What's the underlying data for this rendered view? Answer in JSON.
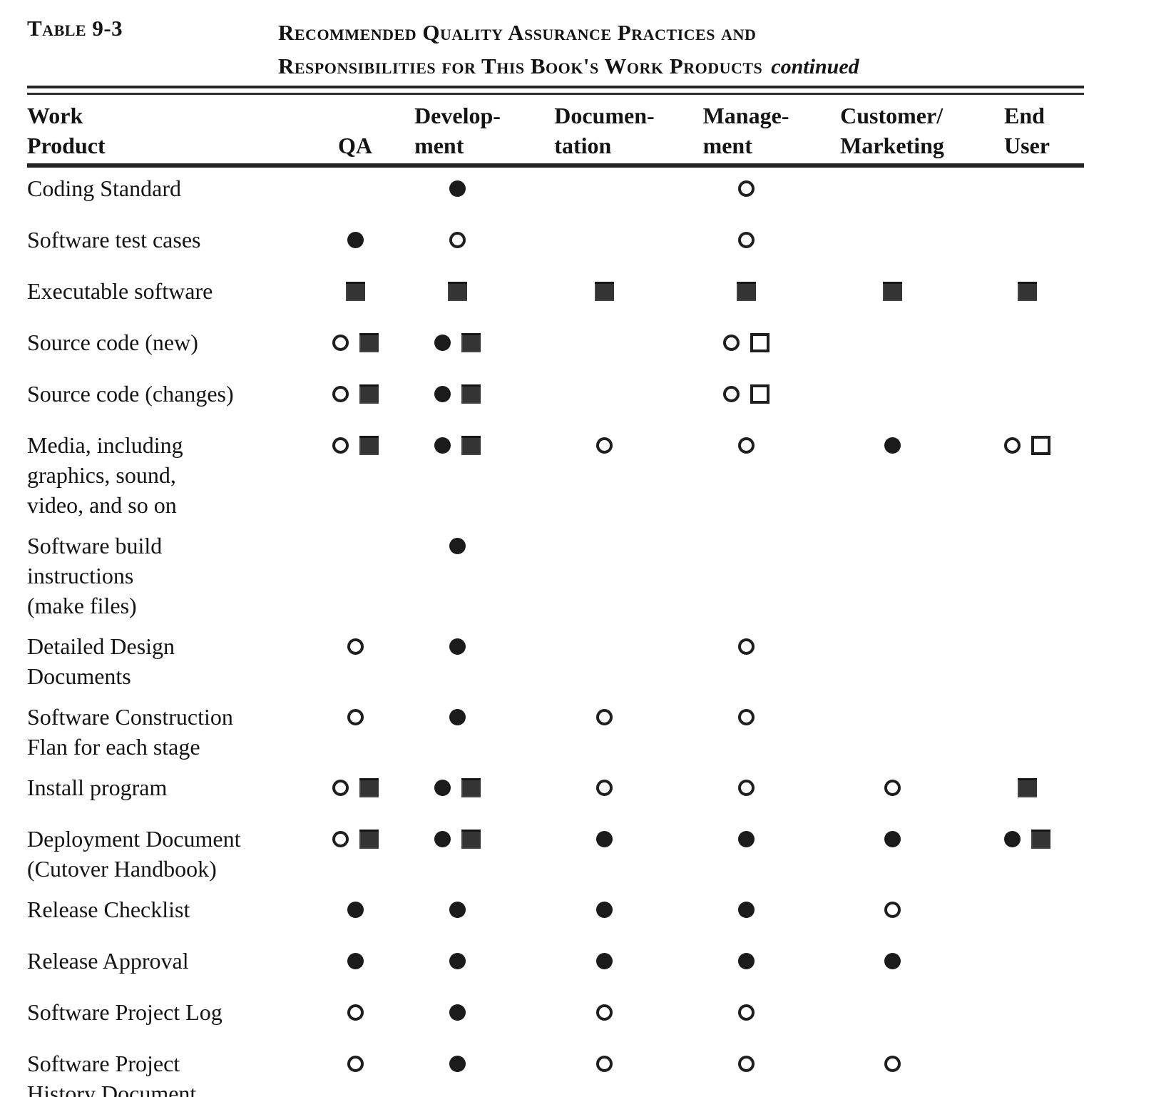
{
  "title": {
    "table_label": "Table 9-3",
    "line1": "Recommended Quality Assurance Practices and",
    "line2": "Responsibilities for This Book's Work Products",
    "continued": "continued"
  },
  "columns": [
    {
      "id": "work_product",
      "label_lines": [
        "Work",
        "Product"
      ]
    },
    {
      "id": "qa",
      "label_lines": [
        "QA"
      ]
    },
    {
      "id": "development",
      "label_lines": [
        "Develop-",
        "ment"
      ]
    },
    {
      "id": "documentation",
      "label_lines": [
        "Documen-",
        "tation"
      ]
    },
    {
      "id": "management",
      "label_lines": [
        "Manage-",
        "ment"
      ]
    },
    {
      "id": "customer_marketing",
      "label_lines": [
        "Customer/",
        "Marketing"
      ]
    },
    {
      "id": "end_user",
      "label_lines": [
        "End",
        "User"
      ]
    }
  ],
  "symbol_colors": {
    "filled": "#1b1b1b",
    "filled_square": "#343434",
    "outline": "#1f1f1f",
    "background": "#ffffff"
  },
  "rows": [
    {
      "label_lines": [
        "Coding Standard"
      ],
      "cells": {
        "qa": [],
        "development": [
          "filled-circle"
        ],
        "documentation": [],
        "management": [
          "open-circle"
        ],
        "customer_marketing": [],
        "end_user": []
      }
    },
    {
      "label_lines": [
        "Software test cases"
      ],
      "cells": {
        "qa": [
          "filled-circle"
        ],
        "development": [
          "open-circle"
        ],
        "documentation": [],
        "management": [
          "open-circle"
        ],
        "customer_marketing": [],
        "end_user": []
      }
    },
    {
      "label_lines": [
        "Executable software"
      ],
      "cells": {
        "qa": [
          "filled-square"
        ],
        "development": [
          "filled-square"
        ],
        "documentation": [
          "filled-square"
        ],
        "management": [
          "filled-square"
        ],
        "customer_marketing": [
          "filled-square"
        ],
        "end_user": [
          "filled-square"
        ]
      }
    },
    {
      "label_lines": [
        "Source code (new)"
      ],
      "cells": {
        "qa": [
          "open-circle",
          "filled-square"
        ],
        "development": [
          "filled-circle",
          "filled-square"
        ],
        "documentation": [],
        "management": [
          "open-circle",
          "open-square"
        ],
        "customer_marketing": [],
        "end_user": []
      }
    },
    {
      "label_lines": [
        "Source code (changes)"
      ],
      "cells": {
        "qa": [
          "open-circle",
          "filled-square"
        ],
        "development": [
          "filled-circle",
          "filled-square"
        ],
        "documentation": [],
        "management": [
          "open-circle",
          "open-square"
        ],
        "customer_marketing": [],
        "end_user": []
      }
    },
    {
      "label_lines": [
        "Media, including",
        "graphics, sound,",
        "video, and so on"
      ],
      "cells": {
        "qa": [
          "open-circle",
          "filled-square"
        ],
        "development": [
          "filled-circle",
          "filled-square"
        ],
        "documentation": [
          "open-circle"
        ],
        "management": [
          "open-circle"
        ],
        "customer_marketing": [
          "filled-circle"
        ],
        "end_user": [
          "open-circle",
          "open-square"
        ]
      }
    },
    {
      "label_lines": [
        "Software  build",
        "instructions",
        "(make files)"
      ],
      "cells": {
        "qa": [],
        "development": [
          "filled-circle"
        ],
        "documentation": [],
        "management": [],
        "customer_marketing": [],
        "end_user": []
      }
    },
    {
      "label_lines": [
        "Detailed Design",
        "Documents"
      ],
      "cells": {
        "qa": [
          "open-circle"
        ],
        "development": [
          "filled-circle"
        ],
        "documentation": [],
        "management": [
          "open-circle"
        ],
        "customer_marketing": [],
        "end_user": []
      }
    },
    {
      "label_lines": [
        "Software  Construction",
        "Flan for each stage"
      ],
      "cells": {
        "qa": [
          "open-circle"
        ],
        "development": [
          "filled-circle"
        ],
        "documentation": [
          "open-circle"
        ],
        "management": [
          "open-circle"
        ],
        "customer_marketing": [],
        "end_user": []
      }
    },
    {
      "label_lines": [
        "Install program"
      ],
      "cells": {
        "qa": [
          "open-circle",
          "filled-square"
        ],
        "development": [
          "filled-circle",
          "filled-square"
        ],
        "documentation": [
          "open-circle"
        ],
        "management": [
          "open-circle"
        ],
        "customer_marketing": [
          "open-circle"
        ],
        "end_user": [
          "filled-square"
        ]
      }
    },
    {
      "label_lines": [
        "Deployment Document",
        "(Cutover  Handbook)"
      ],
      "cells": {
        "qa": [
          "open-circle",
          "filled-square"
        ],
        "development": [
          "filled-circle",
          "filled-square"
        ],
        "documentation": [
          "filled-circle"
        ],
        "management": [
          "filled-circle"
        ],
        "customer_marketing": [
          "filled-circle"
        ],
        "end_user": [
          "filled-circle",
          "filled-square"
        ]
      }
    },
    {
      "label_lines": [
        "Release  Checklist"
      ],
      "cells": {
        "qa": [
          "filled-circle"
        ],
        "development": [
          "filled-circle"
        ],
        "documentation": [
          "filled-circle"
        ],
        "management": [
          "filled-circle"
        ],
        "customer_marketing": [
          "open-circle"
        ],
        "end_user": []
      }
    },
    {
      "label_lines": [
        "Release  Approval"
      ],
      "cells": {
        "qa": [
          "filled-circle"
        ],
        "development": [
          "filled-circle"
        ],
        "documentation": [
          "filled-circle"
        ],
        "management": [
          "filled-circle"
        ],
        "customer_marketing": [
          "filled-circle"
        ],
        "end_user": []
      }
    },
    {
      "label_lines": [
        "Software Project Log"
      ],
      "cells": {
        "qa": [
          "open-circle"
        ],
        "development": [
          "filled-circle"
        ],
        "documentation": [
          "open-circle"
        ],
        "management": [
          "open-circle"
        ],
        "customer_marketing": [],
        "end_user": []
      }
    },
    {
      "label_lines": [
        "Software Project",
        "History Document"
      ],
      "cells": {
        "qa": [
          "open-circle"
        ],
        "development": [
          "filled-circle"
        ],
        "documentation": [
          "open-circle"
        ],
        "management": [
          "open-circle"
        ],
        "customer_marketing": [
          "open-circle"
        ],
        "end_user": []
      }
    }
  ]
}
